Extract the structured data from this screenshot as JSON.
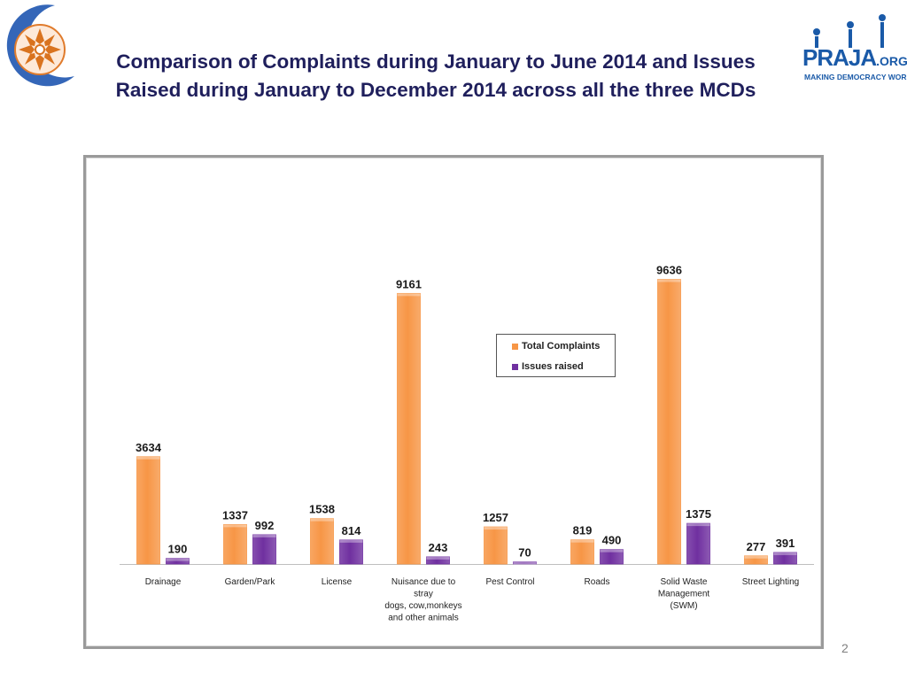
{
  "slide": {
    "title_line1": "Comparison of Complaints during January to June 2014 and Issues",
    "title_line2": "Raised during January to December 2014 across all the three MCDs",
    "page_number": "2",
    "praja": {
      "brand": "PRAJA",
      "org": ".ORG",
      "tagline": "MAKING DEMOCRACY WORK"
    }
  },
  "colors": {
    "title": "#1f1f5c",
    "total_complaints": "#f79646",
    "issues_raised": "#7030a0"
  },
  "chart_data": {
    "type": "bar",
    "title": "",
    "xlabel": "",
    "ylabel": "",
    "ylim": [
      0,
      11000
    ],
    "grid": false,
    "legend_placement": "center",
    "categories": [
      [
        "Drainage"
      ],
      [
        "Garden/Park"
      ],
      [
        "License"
      ],
      [
        "Nuisance due to",
        "stray",
        "dogs, cow,monkeys",
        "and other animals"
      ],
      [
        "Pest Control"
      ],
      [
        "Roads"
      ],
      [
        "Solid Waste",
        "Management",
        "(SWM)"
      ],
      [
        "Street Lighting"
      ]
    ],
    "series": [
      {
        "name": "Total Complaints",
        "values": [
          3634,
          1337,
          1538,
          9161,
          1257,
          819,
          9636,
          277
        ]
      },
      {
        "name": "Issues raised",
        "values": [
          190,
          992,
          814,
          243,
          70,
          490,
          1375,
          391
        ]
      }
    ]
  }
}
